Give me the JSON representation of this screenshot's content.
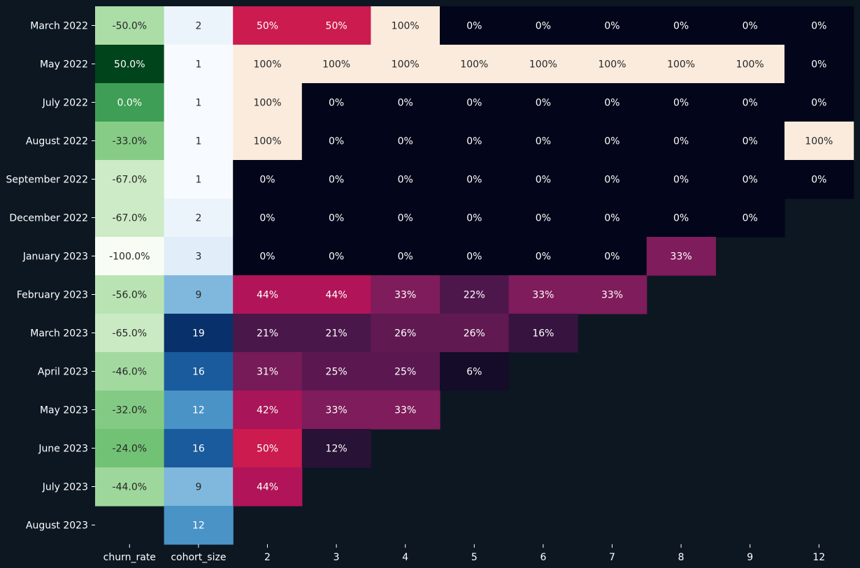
{
  "chart_data": {
    "type": "heatmap",
    "title": "",
    "xlabel": "",
    "ylabel": "",
    "columns": [
      "churn_rate",
      "cohort_size",
      "2",
      "3",
      "4",
      "5",
      "6",
      "7",
      "8",
      "9",
      "12"
    ],
    "rows": [
      "March 2022",
      "May 2022",
      "July 2022",
      "August 2022",
      "September 2022",
      "December 2022",
      "January 2023",
      "February 2023",
      "March 2023",
      "April 2023",
      "May 2023",
      "June 2023",
      "July 2023",
      "August 2023"
    ],
    "churn_rate": [
      -50.0,
      50.0,
      0.0,
      -33.0,
      -67.0,
      -67.0,
      -100.0,
      -56.0,
      -65.0,
      -46.0,
      -32.0,
      -24.0,
      -44.0,
      null
    ],
    "churn_rate_range": [
      -100,
      50
    ],
    "cohort_size": [
      2,
      1,
      1,
      1,
      1,
      2,
      3,
      9,
      19,
      16,
      12,
      16,
      9,
      12
    ],
    "cohort_size_range": [
      1,
      19
    ],
    "retention_percent": [
      [
        50,
        50,
        100,
        0,
        0,
        0,
        0,
        0,
        0
      ],
      [
        100,
        100,
        100,
        100,
        100,
        100,
        100,
        100,
        0
      ],
      [
        100,
        0,
        0,
        0,
        0,
        0,
        0,
        0,
        0
      ],
      [
        100,
        0,
        0,
        0,
        0,
        0,
        0,
        0,
        100
      ],
      [
        0,
        0,
        0,
        0,
        0,
        0,
        0,
        0,
        0
      ],
      [
        0,
        0,
        0,
        0,
        0,
        0,
        0,
        0,
        null
      ],
      [
        0,
        0,
        0,
        0,
        0,
        0,
        33,
        null,
        null
      ],
      [
        44,
        44,
        33,
        22,
        33,
        33,
        null,
        null,
        null
      ],
      [
        21,
        21,
        26,
        26,
        16,
        null,
        null,
        null,
        null
      ],
      [
        31,
        25,
        25,
        6,
        null,
        null,
        null,
        null,
        null
      ],
      [
        42,
        33,
        33,
        null,
        null,
        null,
        null,
        null,
        null
      ],
      [
        50,
        12,
        null,
        null,
        null,
        null,
        null,
        null,
        null
      ],
      [
        44,
        null,
        null,
        null,
        null,
        null,
        null,
        null,
        null
      ],
      [
        null,
        null,
        null,
        null,
        null,
        null,
        null,
        null,
        null
      ]
    ],
    "retention_range": [
      0,
      100
    ],
    "colormaps": {
      "churn_rate": "Greens",
      "cohort_size": "Blues",
      "retention": "rocket"
    },
    "grid": false,
    "legend": "none"
  }
}
